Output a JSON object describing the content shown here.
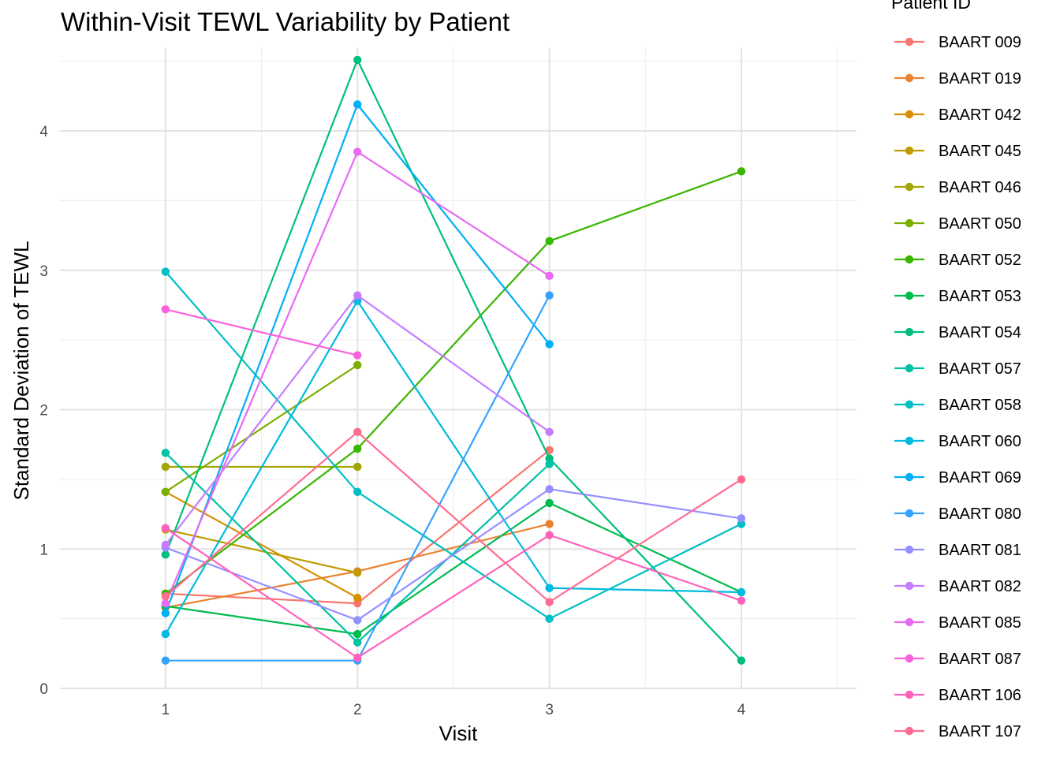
{
  "chart_data": {
    "type": "line",
    "title": "Within-Visit TEWL Variability by Patient",
    "xlabel": "Visit",
    "ylabel": "Standard Deviation of TEWL",
    "x_ticks": [
      "1",
      "2",
      "3",
      "4"
    ],
    "y_ticks": [
      "0",
      "1",
      "2",
      "3",
      "4"
    ],
    "xlim": [
      0.45,
      4.6
    ],
    "ylim": [
      0,
      4.6
    ],
    "grid": true,
    "legend_title": "Patient ID",
    "legend_position": "right",
    "series": [
      {
        "name": "BAART 009",
        "color": "#F8766D",
        "x": [
          1,
          2,
          3
        ],
        "y": [
          0.68,
          0.61,
          1.71
        ]
      },
      {
        "name": "BAART 019",
        "color": "#EA8331",
        "x": [
          1,
          2,
          3
        ],
        "y": [
          0.58,
          0.84,
          1.18
        ]
      },
      {
        "name": "BAART 042",
        "color": "#D89000",
        "x": [
          1,
          2
        ],
        "y": [
          1.41,
          0.65
        ]
      },
      {
        "name": "BAART 045",
        "color": "#C09B00",
        "x": [
          1,
          2
        ],
        "y": [
          1.14,
          0.83
        ]
      },
      {
        "name": "BAART 046",
        "color": "#A3A500",
        "x": [
          1,
          2
        ],
        "y": [
          1.59,
          1.59
        ]
      },
      {
        "name": "BAART 050",
        "color": "#7CAE00",
        "x": [
          1,
          2
        ],
        "y": [
          1.41,
          2.32
        ]
      },
      {
        "name": "BAART 052",
        "color": "#39B600",
        "x": [
          1,
          2,
          3,
          4
        ],
        "y": [
          0.68,
          1.72,
          3.21,
          3.71
        ]
      },
      {
        "name": "BAART 053",
        "color": "#00BB4E",
        "x": [
          1,
          2,
          3,
          4
        ],
        "y": [
          0.59,
          0.39,
          1.33,
          0.69
        ]
      },
      {
        "name": "BAART 054",
        "color": "#00BF7D",
        "x": [
          1,
          2,
          3,
          4
        ],
        "y": [
          0.96,
          4.51,
          1.65,
          0.2
        ]
      },
      {
        "name": "BAART 057",
        "color": "#00C1A3",
        "x": [
          1,
          2,
          3
        ],
        "y": [
          1.69,
          0.33,
          1.61
        ]
      },
      {
        "name": "BAART 058",
        "color": "#00BFC4",
        "x": [
          1,
          2,
          3,
          4
        ],
        "y": [
          2.99,
          1.41,
          0.5,
          1.18
        ]
      },
      {
        "name": "BAART 060",
        "color": "#00BAE0",
        "x": [
          1,
          2,
          3,
          4
        ],
        "y": [
          0.39,
          2.78,
          0.72,
          0.69
        ]
      },
      {
        "name": "BAART 069",
        "color": "#00B0F6",
        "x": [
          1,
          2,
          3
        ],
        "y": [
          0.54,
          4.19,
          2.47
        ]
      },
      {
        "name": "BAART 080",
        "color": "#35A2FF",
        "x": [
          1,
          2,
          3
        ],
        "y": [
          0.2,
          0.2,
          2.82
        ]
      },
      {
        "name": "BAART 081",
        "color": "#9590FF",
        "x": [
          1,
          2,
          3,
          4
        ],
        "y": [
          1.01,
          0.49,
          1.43,
          1.22
        ]
      },
      {
        "name": "BAART 082",
        "color": "#C77CFF",
        "x": [
          1,
          2,
          3
        ],
        "y": [
          1.03,
          2.82,
          1.84
        ]
      },
      {
        "name": "BAART 085",
        "color": "#E76BF3",
        "x": [
          1,
          2,
          3
        ],
        "y": [
          0.61,
          3.85,
          2.96
        ]
      },
      {
        "name": "BAART 087",
        "color": "#FA62DB",
        "x": [
          1,
          2
        ],
        "y": [
          2.72,
          2.39
        ]
      },
      {
        "name": "BAART 106",
        "color": "#FF62BC",
        "x": [
          1,
          2,
          3,
          4
        ],
        "y": [
          1.15,
          0.22,
          1.1,
          0.63
        ]
      },
      {
        "name": "BAART 107",
        "color": "#FF6C91",
        "x": [
          1,
          2,
          3,
          4
        ],
        "y": [
          0.66,
          1.84,
          0.62,
          1.5
        ]
      }
    ]
  }
}
